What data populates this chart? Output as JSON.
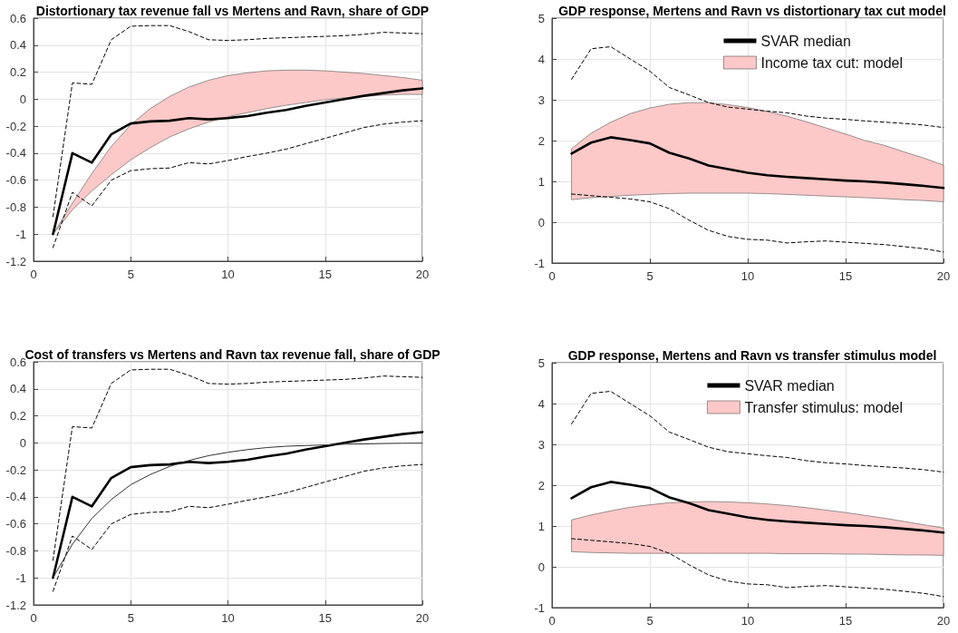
{
  "chart_data": [
    {
      "type": "line",
      "title": "Distortionary tax revenue fall vs Mertens and Ravn, share of GDP",
      "xlim": [
        0,
        20
      ],
      "xticks": [
        0,
        5,
        10,
        15,
        20
      ],
      "ylim": [
        -1.2,
        0.6
      ],
      "yticks": [
        -1.2,
        -1,
        -0.8,
        -0.6,
        -0.4,
        -0.2,
        0,
        0.2,
        0.4,
        0.6
      ],
      "grid": true,
      "marker": "none",
      "x": [
        1,
        2,
        3,
        4,
        5,
        6,
        7,
        8,
        9,
        10,
        11,
        12,
        13,
        14,
        15,
        16,
        17,
        18,
        19,
        20
      ],
      "series": [
        {
          "color": "#000000",
          "values": [
            -1.0,
            -0.4,
            -0.47,
            -0.26,
            -0.18,
            -0.165,
            -0.16,
            -0.14,
            -0.15,
            -0.14,
            -0.125,
            -0.1,
            -0.08,
            -0.05,
            -0.025,
            0.0,
            0.025,
            0.045,
            0.065,
            0.08
          ]
        },
        {
          "color": "#000000",
          "line_style": "dashed",
          "values": [
            -0.87,
            0.12,
            0.11,
            0.44,
            0.54,
            0.545,
            0.545,
            0.5,
            0.44,
            0.435,
            0.44,
            0.45,
            0.455,
            0.46,
            0.465,
            0.47,
            0.48,
            0.495,
            0.49,
            0.485
          ]
        },
        {
          "color": "#000000",
          "line_style": "dashed",
          "values": [
            -1.1,
            -0.69,
            -0.79,
            -0.6,
            -0.53,
            -0.515,
            -0.51,
            -0.47,
            -0.48,
            -0.455,
            -0.425,
            -0.4,
            -0.37,
            -0.33,
            -0.29,
            -0.25,
            -0.21,
            -0.185,
            -0.17,
            -0.16
          ]
        },
        {
          "color": "#fcc8c8",
          "values": [
            null,
            null,
            null,
            null,
            null,
            null,
            null,
            null,
            null,
            null,
            null,
            null,
            null,
            null,
            null,
            null,
            null,
            null,
            null,
            null
          ],
          "lower": [
            -1.0,
            -0.82,
            -0.68,
            -0.56,
            -0.45,
            -0.36,
            -0.28,
            -0.22,
            -0.17,
            -0.13,
            -0.1,
            -0.07,
            -0.045,
            -0.025,
            -0.005,
            0.01,
            0.02,
            0.03,
            0.035,
            0.035
          ],
          "upper": [
            -1.0,
            -0.77,
            -0.55,
            -0.35,
            -0.19,
            -0.07,
            0.02,
            0.09,
            0.14,
            0.175,
            0.195,
            0.21,
            0.215,
            0.215,
            0.21,
            0.2,
            0.19,
            0.175,
            0.16,
            0.14
          ]
        }
      ]
    },
    {
      "type": "line",
      "title": "GDP response, Mertens and Ravn vs distortionary tax cut model",
      "xlim": [
        0,
        20
      ],
      "xticks": [
        0,
        5,
        10,
        15,
        20
      ],
      "ylim": [
        -1,
        5
      ],
      "yticks": [
        -1,
        0,
        1,
        2,
        3,
        4,
        5
      ],
      "grid": true,
      "marker": "none",
      "legend": "top right",
      "x": [
        1,
        2,
        3,
        4,
        5,
        6,
        7,
        8,
        9,
        10,
        11,
        12,
        13,
        14,
        15,
        16,
        17,
        18,
        19,
        20
      ],
      "series": [
        {
          "name": "SVAR median",
          "color": "#000000",
          "values": [
            1.68,
            1.95,
            2.08,
            2.01,
            1.93,
            1.7,
            1.56,
            1.39,
            1.3,
            1.21,
            1.15,
            1.11,
            1.08,
            1.05,
            1.02,
            1.0,
            0.97,
            0.93,
            0.89,
            0.84
          ]
        },
        {
          "color": "#000000",
          "line_style": "dashed",
          "values": [
            3.5,
            4.25,
            4.3,
            4.0,
            3.7,
            3.3,
            3.12,
            2.93,
            2.82,
            2.77,
            2.72,
            2.68,
            2.6,
            2.55,
            2.52,
            2.48,
            2.45,
            2.42,
            2.38,
            2.32
          ]
        },
        {
          "color": "#000000",
          "line_style": "dashed",
          "values": [
            0.69,
            0.65,
            0.61,
            0.57,
            0.5,
            0.33,
            0.05,
            -0.2,
            -0.35,
            -0.42,
            -0.44,
            -0.51,
            -0.48,
            -0.46,
            -0.49,
            -0.52,
            -0.55,
            -0.6,
            -0.65,
            -0.73
          ]
        },
        {
          "name": "Income tax cut: model",
          "color": "#fcc8c8",
          "values": [
            null,
            null,
            null,
            null,
            null,
            null,
            null,
            null,
            null,
            null,
            null,
            null,
            null,
            null,
            null,
            null,
            null,
            null,
            null,
            null
          ],
          "lower": [
            0.55,
            0.6,
            0.63,
            0.66,
            0.68,
            0.7,
            0.71,
            0.71,
            0.71,
            0.71,
            0.7,
            0.68,
            0.66,
            0.64,
            0.62,
            0.6,
            0.58,
            0.55,
            0.53,
            0.5
          ],
          "upper": [
            1.8,
            2.18,
            2.45,
            2.66,
            2.8,
            2.89,
            2.93,
            2.93,
            2.88,
            2.81,
            2.71,
            2.6,
            2.46,
            2.31,
            2.16,
            2.0,
            1.88,
            1.72,
            1.57,
            1.4
          ]
        }
      ]
    },
    {
      "type": "line",
      "title": "Cost of transfers vs Mertens and Ravn tax revenue fall, share of GDP",
      "xlim": [
        0,
        20
      ],
      "xticks": [
        0,
        5,
        10,
        15,
        20
      ],
      "ylim": [
        -1.2,
        0.6
      ],
      "yticks": [
        -1.2,
        -1,
        -0.8,
        -0.6,
        -0.4,
        -0.2,
        0,
        0.2,
        0.4,
        0.6
      ],
      "grid": true,
      "marker": "none",
      "x": [
        1,
        2,
        3,
        4,
        5,
        6,
        7,
        8,
        9,
        10,
        11,
        12,
        13,
        14,
        15,
        16,
        17,
        18,
        19,
        20
      ],
      "series": [
        {
          "color": "#000000",
          "values": [
            -1.0,
            -0.4,
            -0.47,
            -0.26,
            -0.18,
            -0.165,
            -0.16,
            -0.14,
            -0.15,
            -0.14,
            -0.125,
            -0.1,
            -0.08,
            -0.05,
            -0.025,
            0.0,
            0.025,
            0.045,
            0.065,
            0.08
          ]
        },
        {
          "color": "#000000",
          "line_style": "dashed",
          "values": [
            -0.87,
            0.12,
            0.11,
            0.44,
            0.54,
            0.545,
            0.545,
            0.5,
            0.44,
            0.435,
            0.44,
            0.45,
            0.455,
            0.46,
            0.465,
            0.47,
            0.48,
            0.495,
            0.49,
            0.485
          ]
        },
        {
          "color": "#000000",
          "line_style": "dashed",
          "values": [
            -1.1,
            -0.69,
            -0.79,
            -0.6,
            -0.53,
            -0.515,
            -0.51,
            -0.47,
            -0.48,
            -0.455,
            -0.425,
            -0.4,
            -0.37,
            -0.33,
            -0.29,
            -0.25,
            -0.21,
            -0.185,
            -0.17,
            -0.16
          ]
        },
        {
          "color": "#333333",
          "values": [
            -1.0,
            -0.75,
            -0.56,
            -0.42,
            -0.31,
            -0.235,
            -0.175,
            -0.13,
            -0.095,
            -0.07,
            -0.05,
            -0.035,
            -0.025,
            -0.02,
            -0.015,
            -0.01,
            -0.008,
            -0.005,
            -0.003,
            -0.002
          ]
        }
      ]
    },
    {
      "type": "line",
      "title": "GDP response, Mertens and Ravn vs transfer stimulus model",
      "xlim": [
        0,
        20
      ],
      "xticks": [
        0,
        5,
        10,
        15,
        20
      ],
      "ylim": [
        -1,
        5
      ],
      "yticks": [
        -1,
        0,
        1,
        2,
        3,
        4,
        5
      ],
      "grid": true,
      "marker": "none",
      "legend": "top right",
      "x": [
        1,
        2,
        3,
        4,
        5,
        6,
        7,
        8,
        9,
        10,
        11,
        12,
        13,
        14,
        15,
        16,
        17,
        18,
        19,
        20
      ],
      "series": [
        {
          "name": "SVAR median",
          "color": "#000000",
          "values": [
            1.68,
            1.95,
            2.08,
            2.01,
            1.93,
            1.7,
            1.56,
            1.39,
            1.3,
            1.21,
            1.15,
            1.11,
            1.08,
            1.05,
            1.02,
            1.0,
            0.97,
            0.93,
            0.89,
            0.84
          ]
        },
        {
          "color": "#000000",
          "line_style": "dashed",
          "values": [
            3.5,
            4.25,
            4.3,
            4.0,
            3.7,
            3.3,
            3.12,
            2.93,
            2.82,
            2.77,
            2.72,
            2.68,
            2.6,
            2.55,
            2.52,
            2.48,
            2.45,
            2.42,
            2.38,
            2.32
          ]
        },
        {
          "color": "#000000",
          "line_style": "dashed",
          "values": [
            0.69,
            0.65,
            0.61,
            0.57,
            0.5,
            0.33,
            0.05,
            -0.2,
            -0.35,
            -0.42,
            -0.44,
            -0.51,
            -0.48,
            -0.46,
            -0.49,
            -0.52,
            -0.55,
            -0.6,
            -0.65,
            -0.73
          ]
        },
        {
          "name": "Transfer stimulus: model",
          "color": "#fcc8c8",
          "values": [
            null,
            null,
            null,
            null,
            null,
            null,
            null,
            null,
            null,
            null,
            null,
            null,
            null,
            null,
            null,
            null,
            null,
            null,
            null,
            null
          ],
          "lower": [
            0.37,
            0.35,
            0.34,
            0.33,
            0.33,
            0.33,
            0.33,
            0.33,
            0.33,
            0.33,
            0.33,
            0.32,
            0.32,
            0.32,
            0.31,
            0.31,
            0.3,
            0.29,
            0.29,
            0.28
          ],
          "upper": [
            1.15,
            1.27,
            1.37,
            1.46,
            1.52,
            1.57,
            1.59,
            1.6,
            1.59,
            1.57,
            1.54,
            1.5,
            1.45,
            1.39,
            1.33,
            1.26,
            1.19,
            1.11,
            1.03,
            0.95
          ]
        }
      ]
    }
  ]
}
